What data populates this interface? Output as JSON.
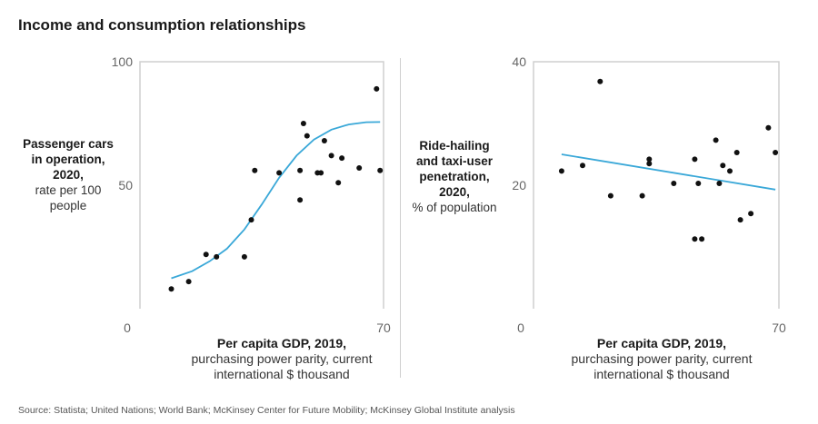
{
  "header": {
    "title": "Income and consumption relationships"
  },
  "footer": {
    "source": "Source: Statista; United Nations; World Bank; McKinsey Center for Future Mobility; McKinsey Global Institute analysis"
  },
  "colors": {
    "trend": "#3aa8d8",
    "points": "#111111",
    "axis": "#cfcfcf"
  },
  "chart_data": [
    {
      "type": "scatter",
      "title": "Passenger cars in operation",
      "ylabel": {
        "bold": "Passenger cars in operation, 2020,",
        "light": "rate per 100 people"
      },
      "xlabel": {
        "bold": "Per capita GDP, 2019,",
        "light": "purchasing power parity, current international $ thousand"
      },
      "xlim": [
        0,
        70
      ],
      "ylim": [
        0,
        100
      ],
      "xticks": [
        "0",
        "70"
      ],
      "yticks": [
        "100",
        "50"
      ],
      "points": [
        [
          9,
          8
        ],
        [
          14,
          11
        ],
        [
          19,
          22
        ],
        [
          22,
          21
        ],
        [
          30,
          21
        ],
        [
          32,
          36
        ],
        [
          33,
          56
        ],
        [
          40,
          55
        ],
        [
          46,
          56
        ],
        [
          46,
          44
        ],
        [
          47,
          75
        ],
        [
          48,
          70
        ],
        [
          51,
          55
        ],
        [
          52,
          55
        ],
        [
          53,
          68
        ],
        [
          55,
          62
        ],
        [
          57,
          51
        ],
        [
          58,
          61
        ],
        [
          63,
          57
        ],
        [
          68,
          89
        ],
        [
          69,
          56
        ]
      ],
      "trend": [
        [
          9,
          12.3
        ],
        [
          15,
          15.2
        ],
        [
          20,
          19.2
        ],
        [
          25,
          24.3
        ],
        [
          30,
          32.1
        ],
        [
          35,
          42.2
        ],
        [
          40,
          53.0
        ],
        [
          45,
          62.0
        ],
        [
          50,
          68.5
        ],
        [
          55,
          72.5
        ],
        [
          60,
          74.6
        ],
        [
          65,
          75.5
        ],
        [
          69,
          75.6
        ]
      ]
    },
    {
      "type": "scatter",
      "title": "Ride-hailing and taxi-user penetration",
      "ylabel": {
        "bold": "Ride-hailing and taxi-user penetration, 2020,",
        "light": "% of population"
      },
      "xlabel": {
        "bold": "Per capita GDP, 2019,",
        "light": "purchasing power parity, current international $ thousand"
      },
      "xlim": [
        0,
        70
      ],
      "ylim": [
        0,
        40
      ],
      "xticks": [
        "0",
        "70"
      ],
      "yticks": [
        "40",
        "20"
      ],
      "points": [
        [
          8,
          22.3
        ],
        [
          14,
          23.2
        ],
        [
          19,
          36.8
        ],
        [
          22,
          18.3
        ],
        [
          31,
          18.3
        ],
        [
          33,
          23.5
        ],
        [
          33,
          24.2
        ],
        [
          40,
          20.3
        ],
        [
          46,
          24.2
        ],
        [
          46,
          11.3
        ],
        [
          47,
          20.3
        ],
        [
          48,
          11.3
        ],
        [
          52,
          27.3
        ],
        [
          53,
          20.3
        ],
        [
          54,
          23.2
        ],
        [
          56,
          22.3
        ],
        [
          58,
          25.3
        ],
        [
          59,
          14.4
        ],
        [
          62,
          15.4
        ],
        [
          67,
          29.3
        ],
        [
          69,
          25.3
        ]
      ],
      "trend": [
        [
          8,
          25.0
        ],
        [
          69,
          19.3
        ]
      ]
    }
  ]
}
